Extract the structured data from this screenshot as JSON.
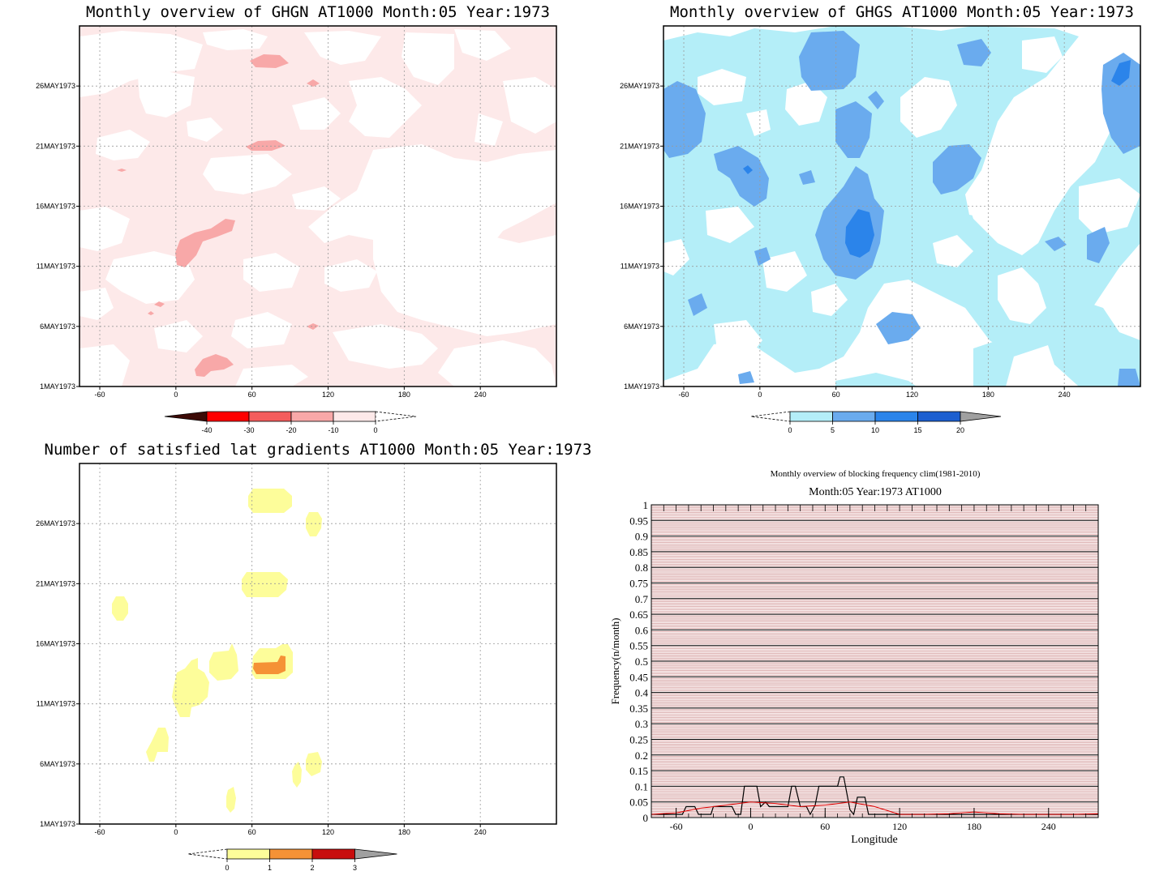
{
  "panels": {
    "ghgn": {
      "title": "Monthly overview of GHGN AT1000 Month:05 Year:1973",
      "y_ticks": [
        "1MAY1973",
        "6MAY1973",
        "11MAY1973",
        "16MAY1973",
        "21MAY1973",
        "26MAY1973"
      ],
      "x_ticks": [
        "-60",
        "0",
        "60",
        "120",
        "180",
        "240"
      ],
      "colorbar": {
        "labels": [
          "-40",
          "-30",
          "-20",
          "-10",
          "0"
        ],
        "colors": [
          "#3d0a06",
          "#ff0000",
          "#f45d5d",
          "#f8a8a8",
          "#fde9e9",
          "#ffffff"
        ]
      }
    },
    "ghgs": {
      "title": "Monthly overview of GHGS AT1000 Month:05 Year:1973",
      "y_ticks": [
        "1MAY1973",
        "6MAY1973",
        "11MAY1973",
        "16MAY1973",
        "21MAY1973",
        "26MAY1973"
      ],
      "x_ticks": [
        "-60",
        "0",
        "60",
        "120",
        "180",
        "240"
      ],
      "colorbar": {
        "labels": [
          "0",
          "5",
          "10",
          "15",
          "20"
        ],
        "colors": [
          "#ffffff",
          "#b4eef8",
          "#6aabee",
          "#2b84ea",
          "#1c5fd0",
          "#a0a0a0"
        ]
      }
    },
    "gradients": {
      "title": "Number of satisfied lat gradients AT1000 Month:05 Year:1973",
      "y_ticks": [
        "1MAY1973",
        "6MAY1973",
        "11MAY1973",
        "16MAY1973",
        "21MAY1973",
        "26MAY1973"
      ],
      "x_ticks": [
        "-60",
        "0",
        "60",
        "120",
        "180",
        "240"
      ],
      "colorbar": {
        "labels": [
          "0",
          "1",
          "2",
          "3"
        ],
        "colors": [
          "#ffffff",
          "#fdfd9a",
          "#f59236",
          "#c80e0e",
          "#a0a0a0"
        ]
      }
    },
    "blocking": {
      "title_top": "Monthly overview of blocking frequency clim(1981-2010)",
      "title_sub": "Month:05 Year:1973  AT1000",
      "xlabel": "Longitude",
      "ylabel": "Frequency(n/month)",
      "x_ticks": [
        "-60",
        "0",
        "60",
        "120",
        "180",
        "240"
      ],
      "y_ticks": [
        "0",
        "0.05",
        "0.1",
        "0.15",
        "0.2",
        "0.25",
        "0.3",
        "0.35",
        "0.4",
        "0.45",
        "0.5",
        "0.55",
        "0.6",
        "0.65",
        "0.7",
        "0.75",
        "0.8",
        "0.85",
        "0.9",
        "0.95",
        "1"
      ]
    }
  },
  "chart_data": [
    {
      "type": "heatmap",
      "title": "Monthly overview of GHGN AT1000 Month:05 Year:1973",
      "x_range": [
        -76,
        300
      ],
      "y_range": [
        "1MAY1973",
        "31MAY1973"
      ],
      "levels": [
        -40,
        -30,
        -20,
        -10,
        0
      ],
      "grid": true
    },
    {
      "type": "heatmap",
      "title": "Monthly overview of GHGS AT1000 Month:05 Year:1973",
      "x_range": [
        -76,
        300
      ],
      "y_range": [
        "1MAY1973",
        "31MAY1973"
      ],
      "levels": [
        0,
        5,
        10,
        15,
        20
      ],
      "grid": true
    },
    {
      "type": "heatmap",
      "title": "Number of satisfied lat gradients AT1000 Month:05 Year:1973",
      "x_range": [
        -76,
        300
      ],
      "y_range": [
        "1MAY1973",
        "31MAY1973"
      ],
      "levels": [
        0,
        1,
        2,
        3
      ],
      "grid": true
    },
    {
      "type": "line",
      "title": "Monthly overview of blocking frequency clim(1981-2010)",
      "xlabel": "Longitude",
      "ylabel": "Frequency(n/month)",
      "xlim": [
        -80,
        280
      ],
      "ylim": [
        0,
        1
      ],
      "series": [
        {
          "color": "#000000",
          "x": [
            -80,
            -55,
            -52,
            -45,
            -42,
            -32,
            -30,
            -15,
            -12,
            -8,
            -5,
            5,
            8,
            12,
            15,
            20,
            25,
            30,
            33,
            36,
            40,
            45,
            48,
            52,
            55,
            60,
            62,
            65,
            68,
            70,
            72,
            75,
            80,
            83,
            86,
            88,
            92,
            95,
            100,
            280
          ],
          "y": [
            0.01,
            0.01,
            0.035,
            0.035,
            0.01,
            0.01,
            0.035,
            0.035,
            0.01,
            0.01,
            0.1,
            0.1,
            0.035,
            0.05,
            0.035,
            0.035,
            0.035,
            0.035,
            0.1,
            0.1,
            0.035,
            0.035,
            0.01,
            0.04,
            0.1,
            0.1,
            0.1,
            0.1,
            0.1,
            0.1,
            0.13,
            0.13,
            0.025,
            0.01,
            0.065,
            0.065,
            0.065,
            0.01,
            0.01,
            0.01
          ]
        },
        {
          "color": "#e00000",
          "x": [
            -80,
            -60,
            -40,
            -20,
            0,
            20,
            40,
            60,
            80,
            100,
            120,
            140,
            160,
            180,
            200,
            220,
            240,
            260,
            280
          ],
          "y": [
            0.01,
            0.015,
            0.03,
            0.04,
            0.05,
            0.045,
            0.035,
            0.04,
            0.05,
            0.035,
            0.01,
            0.01,
            0.012,
            0.018,
            0.012,
            0.01,
            0.01,
            0.01,
            0.012
          ]
        }
      ]
    }
  ]
}
